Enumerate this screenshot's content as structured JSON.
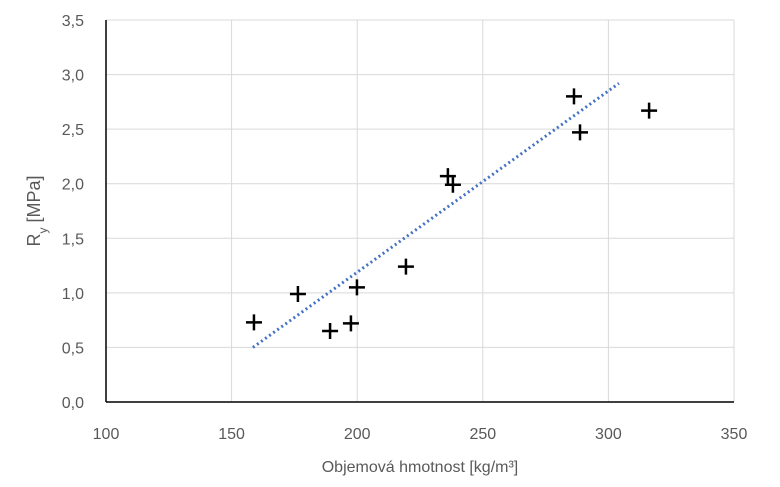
{
  "chart_data": {
    "type": "scatter",
    "x_label": "Objemová hmotnost [kg/m³]",
    "y_label": {
      "main": "R",
      "sub": "y",
      "rest": " [MPa]"
    },
    "x": [
      158.9,
      176.4,
      189.2,
      197.5,
      199.9,
      219.4,
      236.1,
      238.1,
      286.3,
      288.7,
      316.2
    ],
    "values": [
      0.73,
      0.99,
      0.65,
      0.72,
      1.05,
      1.24,
      2.07,
      1.99,
      2.8,
      2.47,
      2.67
    ],
    "color": "#000000",
    "trendline": {
      "x": [
        158.5,
        304.2
      ],
      "y": [
        0.5,
        2.92
      ],
      "color": "#4472c4"
    },
    "xlim": [
      100,
      350
    ],
    "xticks": [
      100,
      150,
      200,
      250,
      300,
      350
    ],
    "ylim": [
      0,
      3.5
    ],
    "yticks": [
      {
        "value": 0,
        "label": "0,0"
      },
      {
        "value": 0.5,
        "label": "0,5"
      },
      {
        "value": 1,
        "label": "1,0"
      },
      {
        "value": 1.5,
        "label": "1,5"
      },
      {
        "value": 2,
        "label": "2,0"
      },
      {
        "value": 2.5,
        "label": "2,5"
      },
      {
        "value": 3,
        "label": "3,0"
      },
      {
        "value": 3.5,
        "label": "3,5"
      }
    ],
    "grid": true
  }
}
